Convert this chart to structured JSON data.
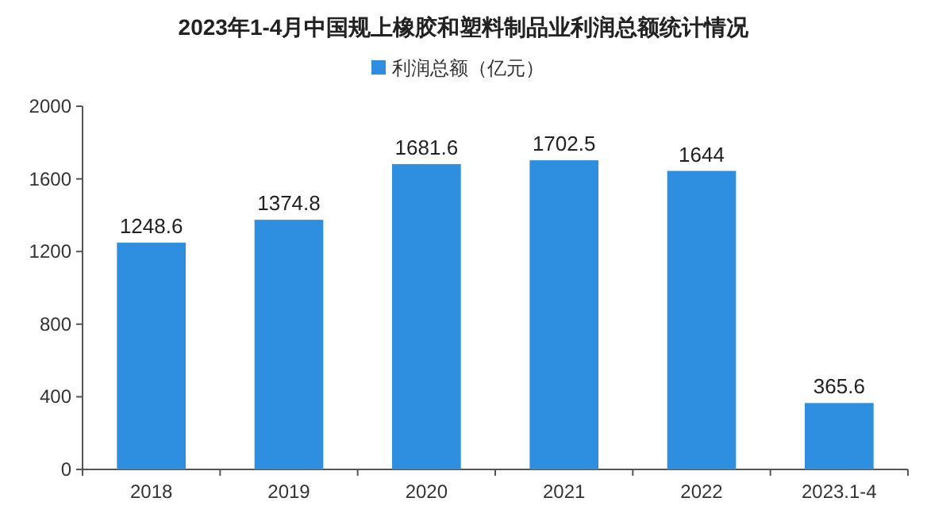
{
  "chart_data": {
    "type": "bar",
    "title": "2023年1-4月中国规上橡胶和塑料制品业利润总额统计情况",
    "categories": [
      "2018",
      "2019",
      "2020",
      "2021",
      "2022",
      "2023.1-4"
    ],
    "series": [
      {
        "name": "利润总额（亿元）",
        "color": "#2e8fe0",
        "values": [
          1248.6,
          1374.8,
          1681.6,
          1702.5,
          1644,
          365.6
        ]
      }
    ],
    "ylim": [
      0,
      2000
    ],
    "yticks": [
      0,
      400,
      800,
      1200,
      1600,
      2000
    ],
    "data_labels": true,
    "legend": "top"
  }
}
